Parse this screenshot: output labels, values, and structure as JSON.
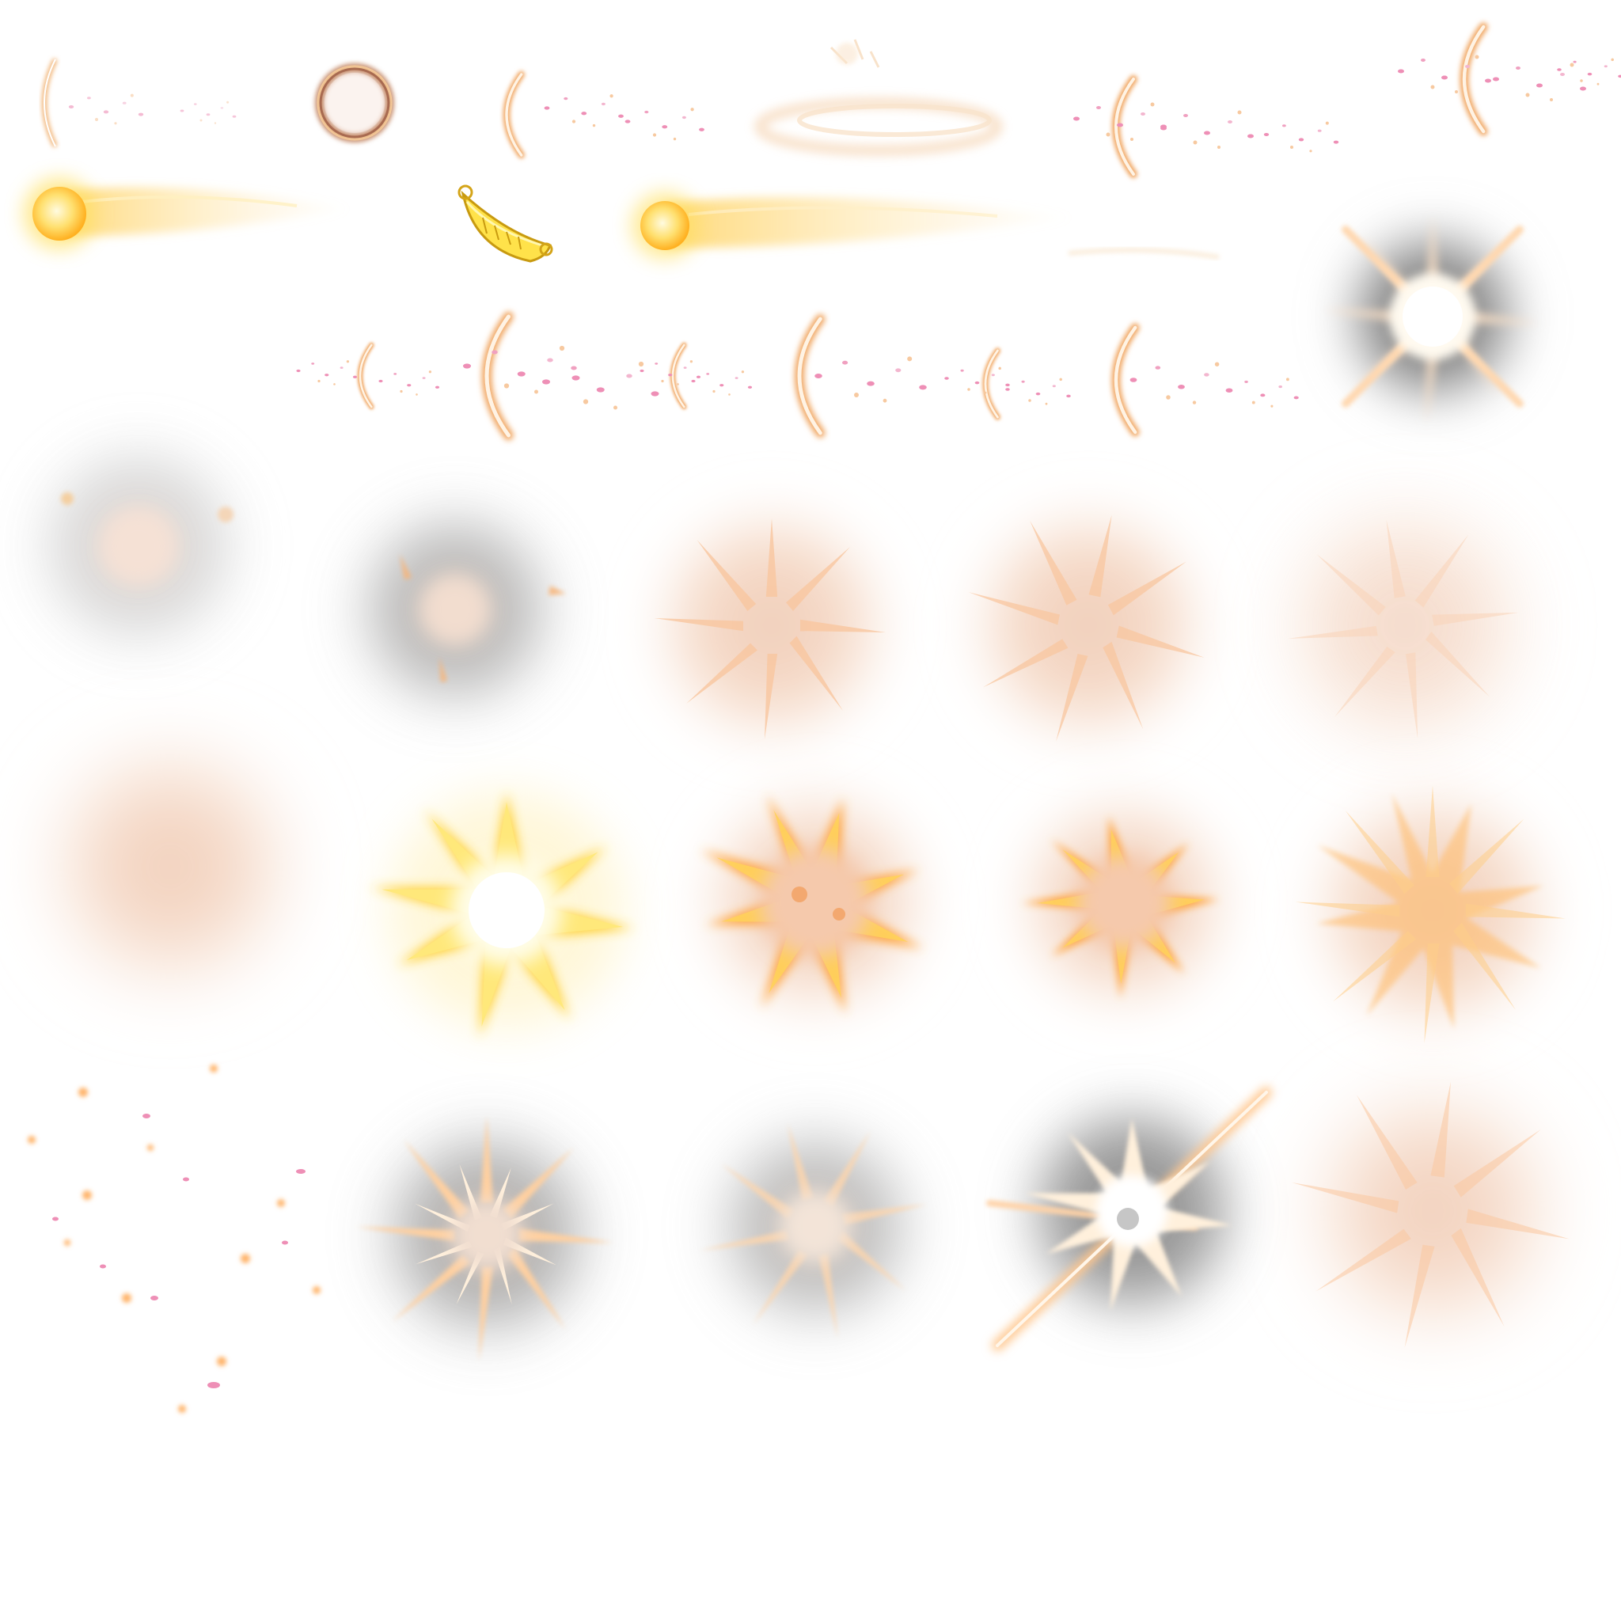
{
  "sprite_sheet": {
    "rows": [
      {
        "row": "petal-wave-and-ring-row",
        "frames": [
          "thin-arc-wave-icon",
          "smoky-ring-icon",
          "petal-arc-wave-icon",
          "smear-swirl-icon",
          "petal-arc-wave-icon",
          "petal-ring-burst-icon"
        ]
      },
      {
        "row": "projectile-row",
        "frames": [
          "orb-comet-icon",
          "golden-crown-bowl-icon",
          "orb-comet-trail-icon",
          "fading-trail-icon"
        ]
      },
      {
        "row": "arc-petal-sequence-row",
        "frames": [
          "small-arc-petals-icon",
          "large-arc-petals-icon",
          "small-arc-petals-icon",
          "large-arc-petals-icon",
          "small-arc-petals-icon",
          "large-arc-petals-icon",
          "dark-star-flash-icon"
        ]
      },
      {
        "row": "smoke-dissipate-row",
        "frames": [
          "grey-smoke-puff-icon",
          "grey-smoke-sparks-icon",
          "peach-smoke-rays-icon",
          "peach-smoke-rays-icon",
          "peach-smoke-fade-icon"
        ]
      },
      {
        "row": "golden-explosion-row",
        "frames": [
          "soft-peach-glow-icon",
          "yellow-star-burst-icon",
          "orange-explosion-icon",
          "orange-explosion-icon",
          "dissipating-explosion-icon"
        ]
      },
      {
        "row": "spark-explosion-row",
        "frames": [
          "petal-sparkle-scatter-icon",
          "dark-spark-burst-icon",
          "dark-spark-fade-icon",
          "white-flash-streak-icon",
          "peach-haze-rays-icon"
        ]
      }
    ],
    "colors": {
      "gold": "#ffd93a",
      "orange": "#ff9a2e",
      "peach": "#f5c7a8",
      "pink_petal": "#ee8fb6",
      "smoke": "#8e8e8e",
      "white_core": "#fffdf4"
    }
  }
}
